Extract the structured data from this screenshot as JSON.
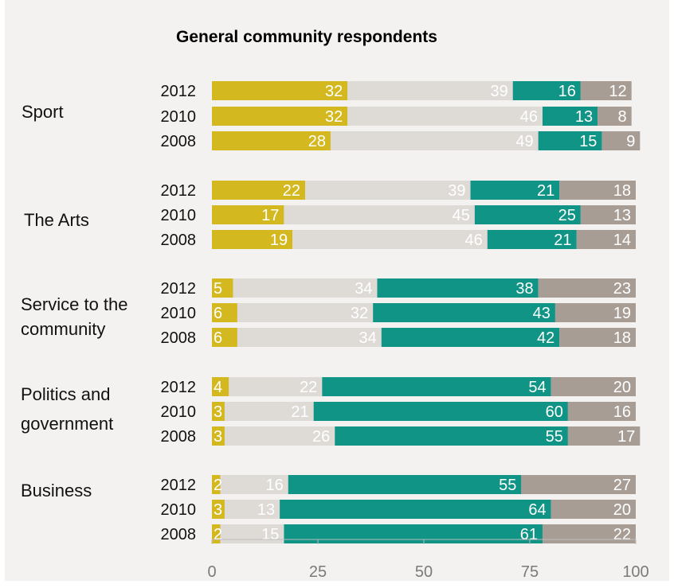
{
  "chart_data": {
    "type": "bar",
    "orientation": "horizontal",
    "stacked": true,
    "title": "General community respondents",
    "xlim": [
      0,
      100
    ],
    "x_ticks": [
      0,
      25,
      50,
      75,
      100
    ],
    "grid": false,
    "legend": null,
    "segment_colors": [
      "#d4b820",
      "#dedad6",
      "#0f9485",
      "#a79d95"
    ],
    "groups": [
      {
        "label": "Sport",
        "rows": [
          {
            "year": "2012",
            "values": [
              32,
              39,
              16,
              12
            ]
          },
          {
            "year": "2010",
            "values": [
              32,
              46,
              13,
              8
            ]
          },
          {
            "year": "2008",
            "values": [
              28,
              49,
              15,
              9
            ]
          }
        ]
      },
      {
        "label": "The Arts",
        "rows": [
          {
            "year": "2012",
            "values": [
              22,
              39,
              21,
              18
            ]
          },
          {
            "year": "2010",
            "values": [
              17,
              45,
              25,
              13
            ]
          },
          {
            "year": "2008",
            "values": [
              19,
              46,
              21,
              14
            ]
          }
        ]
      },
      {
        "label": "Service to the community",
        "rows": [
          {
            "year": "2012",
            "values": [
              5,
              34,
              38,
              23
            ]
          },
          {
            "year": "2010",
            "values": [
              6,
              32,
              43,
              19
            ]
          },
          {
            "year": "2008",
            "values": [
              6,
              34,
              42,
              18
            ]
          }
        ]
      },
      {
        "label": "Politics and government",
        "rows": [
          {
            "year": "2012",
            "values": [
              4,
              22,
              54,
              20
            ]
          },
          {
            "year": "2010",
            "values": [
              3,
              21,
              60,
              16
            ]
          },
          {
            "year": "2008",
            "values": [
              3,
              26,
              55,
              17
            ]
          }
        ]
      },
      {
        "label": "Business",
        "rows": [
          {
            "year": "2012",
            "values": [
              2,
              16,
              55,
              27
            ]
          },
          {
            "year": "2010",
            "values": [
              3,
              13,
              64,
              20
            ]
          },
          {
            "year": "2008",
            "values": [
              2,
              15,
              61,
              22
            ]
          }
        ]
      }
    ]
  }
}
